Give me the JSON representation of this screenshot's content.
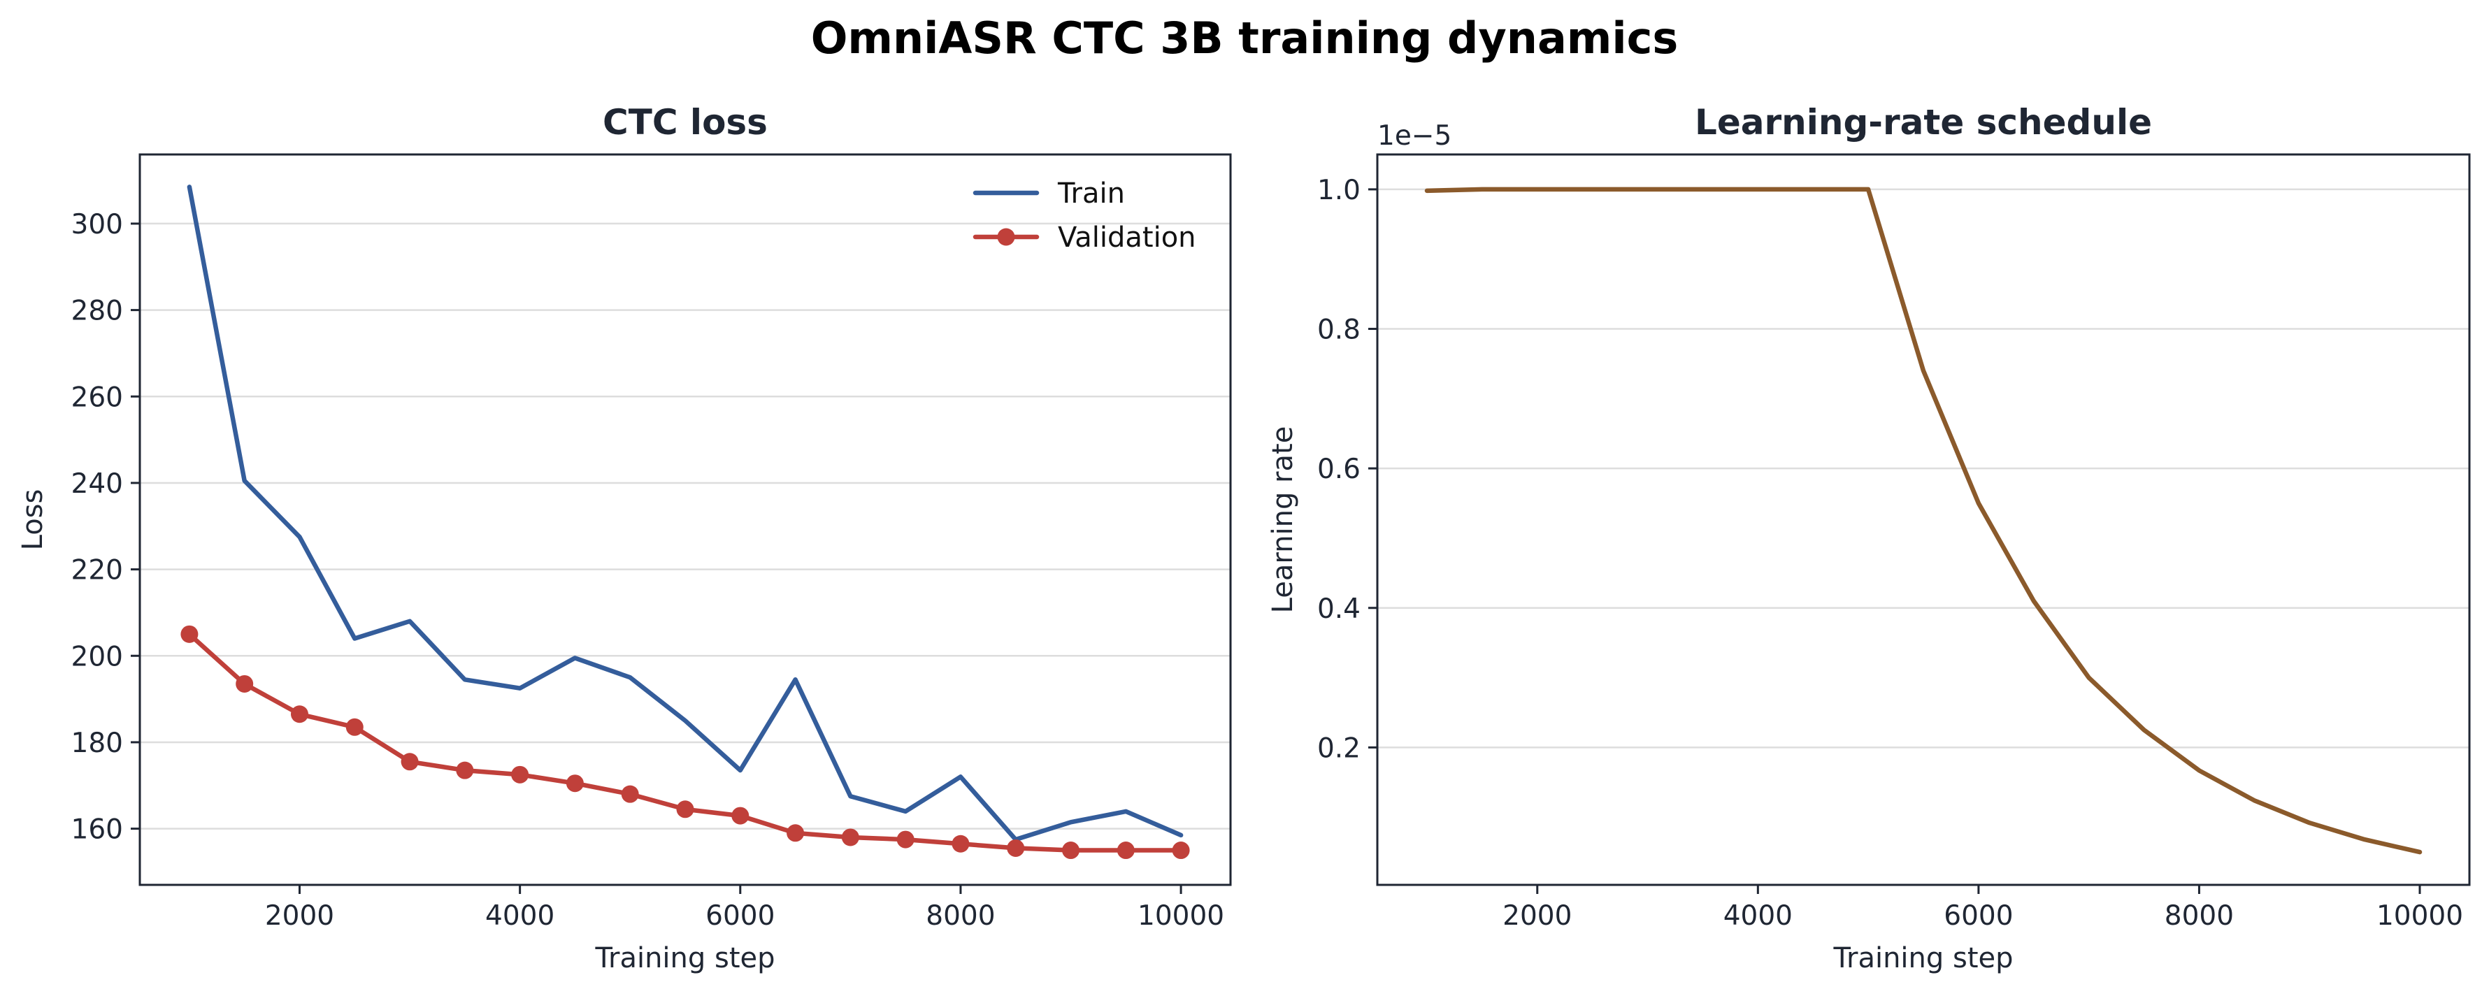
{
  "figure": {
    "title": "OmniASR CTC 3B training dynamics"
  },
  "chart_data": [
    {
      "type": "line",
      "title": "CTC loss",
      "xlabel": "Training step",
      "ylabel": "Loss",
      "xlim": [
        550,
        10450
      ],
      "ylim": [
        147,
        316
      ],
      "xticks": [
        2000,
        4000,
        6000,
        8000,
        10000
      ],
      "yticks": [
        160,
        180,
        200,
        220,
        240,
        260,
        280,
        300
      ],
      "grid": "horizontal",
      "legend": "top-right",
      "x": [
        1000,
        1500,
        2000,
        2500,
        3000,
        3500,
        4000,
        4500,
        5000,
        5500,
        6000,
        6500,
        7000,
        7500,
        8000,
        8500,
        9000,
        9500,
        10000
      ],
      "series": [
        {
          "name": "Train",
          "color": "#345d9b",
          "marker": "none",
          "values": [
            308.5,
            240.5,
            227.5,
            204.0,
            208.0,
            194.5,
            192.5,
            199.5,
            195.0,
            185.0,
            173.5,
            194.5,
            167.5,
            164.0,
            172.0,
            157.5,
            161.5,
            164.0,
            158.5
          ]
        },
        {
          "name": "Validation",
          "color": "#c0403a",
          "marker": "circle",
          "values": [
            205.0,
            193.5,
            186.5,
            183.5,
            175.5,
            173.5,
            172.5,
            170.5,
            168.0,
            164.5,
            163.0,
            159.0,
            158.0,
            157.5,
            156.5,
            155.5,
            155.0,
            155.0,
            155.0
          ]
        }
      ]
    },
    {
      "type": "line",
      "title": "Learning-rate schedule",
      "xlabel": "Training step",
      "ylabel": "Learning rate",
      "offset_text": "1e−5",
      "xlim": [
        550,
        10450
      ],
      "ylim": [
        0.003,
        1.05
      ],
      "xticks": [
        2000,
        4000,
        6000,
        8000,
        10000
      ],
      "yticks": [
        0.2,
        0.4,
        0.6,
        0.8,
        1.0
      ],
      "ytick_labels": [
        "0.2",
        "0.4",
        "0.6",
        "0.8",
        "1.0"
      ],
      "grid": "horizontal",
      "x": [
        1000,
        1500,
        2000,
        2500,
        3000,
        3500,
        4000,
        4500,
        5000,
        5500,
        6000,
        6500,
        7000,
        7500,
        8000,
        8500,
        9000,
        9500,
        10000
      ],
      "series": [
        {
          "color": "#8b5a2b",
          "marker": "none",
          "values": [
            0.998,
            1.0,
            1.0,
            1.0,
            1.0,
            1.0,
            1.0,
            1.0,
            1.0,
            0.74,
            0.55,
            0.41,
            0.3,
            0.225,
            0.167,
            0.124,
            0.092,
            0.068,
            0.05
          ]
        }
      ]
    }
  ]
}
